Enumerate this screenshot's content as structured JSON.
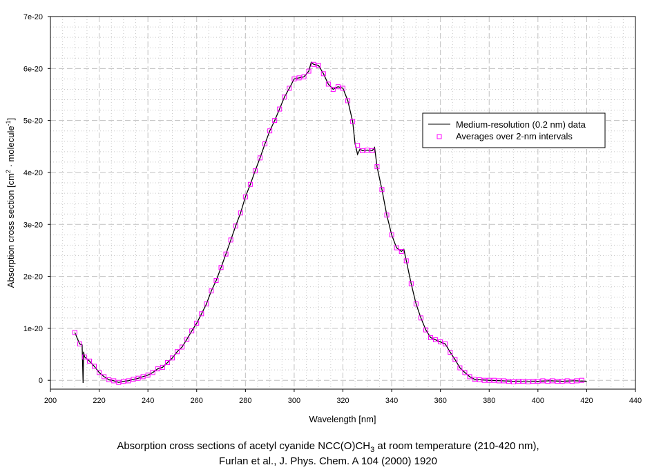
{
  "chart_data": {
    "type": "line",
    "xlabel": "Wavelength [nm]",
    "ylabel": {
      "main": "Absorption cross section [cm",
      "sup1": "2",
      "mid": " · molecule",
      "sup2": "-1",
      "end": "]"
    },
    "xlim": [
      200,
      440
    ],
    "ylim": [
      -1.7e-21,
      7e-20
    ],
    "x_ticks": [
      200,
      220,
      240,
      260,
      280,
      300,
      320,
      340,
      360,
      380,
      400,
      420,
      440
    ],
    "y_ticks": [
      {
        "value": 0,
        "label": "0"
      },
      {
        "value": 1e-20,
        "label": "1e-20"
      },
      {
        "value": 2e-20,
        "label": "2e-20"
      },
      {
        "value": 3e-20,
        "label": "3e-20"
      },
      {
        "value": 4e-20,
        "label": "4e-20"
      },
      {
        "value": 5e-20,
        "label": "5e-20"
      },
      {
        "value": 6e-20,
        "label": "6e-20"
      },
      {
        "value": 7e-20,
        "label": "7e-20"
      }
    ],
    "grid": true,
    "legend_position": "top-right",
    "y_unit_scale": 1e-20,
    "series": [
      {
        "name": "Medium-resolution (0.2 nm) data",
        "style": "line",
        "color": "#000000",
        "x": [
          210,
          212,
          213,
          213.4,
          213.6,
          214,
          216,
          218,
          220,
          222,
          224,
          226,
          228,
          230,
          232,
          234,
          236,
          238,
          240,
          242,
          244,
          246,
          248,
          250,
          252,
          254,
          256,
          258,
          260,
          262,
          264,
          266,
          268,
          270,
          272,
          274,
          276,
          278,
          280,
          282,
          284,
          286,
          288,
          290,
          292,
          294,
          296,
          298,
          300,
          302,
          304,
          306,
          307,
          308,
          310,
          312,
          314,
          316,
          318,
          320,
          322,
          324,
          325,
          326,
          327,
          328,
          330,
          332,
          333,
          334,
          336,
          338,
          340,
          342,
          344,
          345,
          346,
          348,
          350,
          352,
          354,
          356,
          358,
          360,
          362,
          364,
          366,
          368,
          370,
          372,
          374,
          376,
          380,
          385,
          390,
          395,
          400,
          405,
          410,
          415,
          420
        ],
        "y": [
          0.92,
          0.7,
          0.68,
          -0.05,
          0.55,
          0.45,
          0.37,
          0.27,
          0.15,
          0.07,
          0.01,
          -0.01,
          -0.04,
          -0.02,
          -0.01,
          0.02,
          0.04,
          0.07,
          0.1,
          0.15,
          0.22,
          0.25,
          0.34,
          0.43,
          0.55,
          0.64,
          0.79,
          0.95,
          1.1,
          1.28,
          1.47,
          1.72,
          1.92,
          2.17,
          2.43,
          2.7,
          2.97,
          3.22,
          3.53,
          3.77,
          4.03,
          4.28,
          4.55,
          4.8,
          5.0,
          5.22,
          5.45,
          5.62,
          5.8,
          5.82,
          5.84,
          5.95,
          6.12,
          6.08,
          6.06,
          5.9,
          5.7,
          5.6,
          5.65,
          5.62,
          5.38,
          4.98,
          4.55,
          4.35,
          4.45,
          4.42,
          4.43,
          4.42,
          4.48,
          4.11,
          3.67,
          3.18,
          2.8,
          2.55,
          2.48,
          2.52,
          2.3,
          1.86,
          1.47,
          1.2,
          0.97,
          0.82,
          0.78,
          0.74,
          0.7,
          0.54,
          0.4,
          0.24,
          0.15,
          0.07,
          0.02,
          0.01,
          0.0,
          -0.01,
          -0.02,
          -0.03,
          -0.02,
          -0.01,
          -0.02,
          -0.01,
          -0.02
        ]
      },
      {
        "name": "Averages over 2-nm intervals",
        "style": "marker-square",
        "color": "#ff00ff",
        "x": [
          210,
          212,
          214,
          216,
          218,
          220,
          222,
          224,
          226,
          228,
          230,
          232,
          234,
          236,
          238,
          240,
          242,
          244,
          246,
          248,
          250,
          252,
          254,
          256,
          258,
          260,
          262,
          264,
          266,
          268,
          270,
          272,
          274,
          276,
          278,
          280,
          282,
          284,
          286,
          288,
          290,
          292,
          294,
          296,
          298,
          300,
          302,
          304,
          306,
          308,
          310,
          312,
          314,
          316,
          318,
          320,
          322,
          324,
          326,
          328,
          330,
          332,
          334,
          336,
          338,
          340,
          342,
          344,
          346,
          348,
          350,
          352,
          354,
          356,
          358,
          360,
          362,
          364,
          366,
          368,
          370,
          372,
          374,
          376,
          378,
          380,
          382,
          384,
          386,
          388,
          390,
          392,
          394,
          396,
          398,
          400,
          402,
          404,
          406,
          408,
          410,
          412,
          414,
          416,
          418
        ],
        "y": [
          0.92,
          0.7,
          0.45,
          0.37,
          0.27,
          0.15,
          0.07,
          0.01,
          -0.01,
          -0.04,
          -0.02,
          -0.01,
          0.02,
          0.04,
          0.07,
          0.1,
          0.15,
          0.22,
          0.25,
          0.34,
          0.43,
          0.55,
          0.64,
          0.79,
          0.95,
          1.1,
          1.28,
          1.47,
          1.72,
          1.92,
          2.17,
          2.43,
          2.7,
          2.97,
          3.22,
          3.53,
          3.77,
          4.03,
          4.28,
          4.55,
          4.8,
          5.0,
          5.22,
          5.45,
          5.62,
          5.8,
          5.82,
          5.84,
          5.95,
          6.08,
          6.06,
          5.9,
          5.7,
          5.6,
          5.65,
          5.62,
          5.38,
          4.98,
          4.52,
          4.42,
          4.43,
          4.42,
          4.11,
          3.67,
          3.18,
          2.8,
          2.55,
          2.48,
          2.3,
          1.86,
          1.47,
          1.2,
          0.97,
          0.82,
          0.78,
          0.74,
          0.7,
          0.54,
          0.4,
          0.24,
          0.15,
          0.07,
          0.02,
          0.01,
          0.0,
          0.0,
          0.0,
          -0.01,
          -0.01,
          -0.02,
          -0.03,
          -0.02,
          -0.02,
          -0.03,
          -0.02,
          -0.02,
          -0.01,
          -0.02,
          -0.01,
          -0.02,
          -0.02,
          -0.01,
          -0.02,
          -0.01,
          0.0
        ]
      }
    ]
  },
  "caption": {
    "line1_pre": "Absorption cross sections of acetyl cyanide NCC(O)CH",
    "line1_sub": "3",
    "line1_post": " at room temperature (210-420 nm),",
    "line2": "Furlan et al., J. Phys. Chem. A 104 (2000) 1920"
  }
}
